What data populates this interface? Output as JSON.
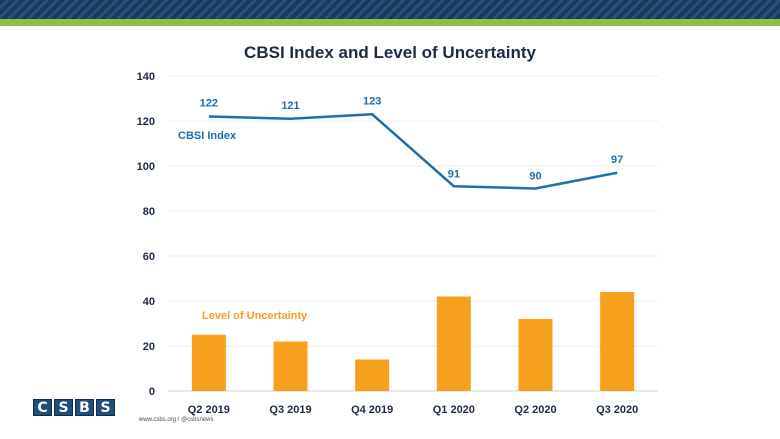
{
  "chart_data": {
    "type": "bar+line",
    "title": "CBSI Index and Level of Uncertainty",
    "categories": [
      "Q2 2019",
      "Q3 2019",
      "Q4 2019",
      "Q1 2020",
      "Q2 2020",
      "Q3 2020"
    ],
    "series": [
      {
        "name": "CBSI Index",
        "type": "line",
        "color": "#1f6fa8",
        "values": [
          122,
          121,
          123,
          91,
          90,
          97
        ],
        "data_labels": [
          "122",
          "121",
          "123",
          "91",
          "90",
          "97"
        ]
      },
      {
        "name": "Level of Uncertainty",
        "type": "bar",
        "color": "#f7a01e",
        "values": [
          25,
          22,
          14,
          42,
          32,
          44
        ]
      }
    ],
    "ylim": [
      0,
      140
    ],
    "yticks": [
      "0",
      "20",
      "40",
      "60",
      "80",
      "100",
      "120",
      "140"
    ],
    "grid": true,
    "xlabel": "",
    "ylabel": ""
  },
  "branding": {
    "logo_letters": [
      "C",
      "S",
      "B",
      "S"
    ],
    "footer": "www.csbs.org  /  @csbsnews"
  },
  "colors": {
    "header_navy": "#1a3a5a",
    "header_green": "#8cc13f",
    "logo_blue": "#1f4e79"
  }
}
